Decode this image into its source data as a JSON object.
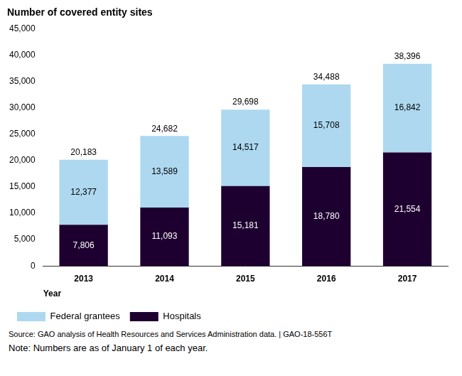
{
  "chart_data": {
    "type": "bar",
    "title": "Number of covered entity sites",
    "x_label": "Year",
    "categories": [
      "2013",
      "2014",
      "2015",
      "2016",
      "2017"
    ],
    "series": [
      {
        "name": "Hospitals",
        "color": "#1e0030",
        "values": [
          7806,
          11093,
          15181,
          18780,
          21554
        ],
        "value_labels": [
          "7,806",
          "11,093",
          "15,181",
          "18,780",
          "21,554"
        ]
      },
      {
        "name": "Federal grantees",
        "color": "#add8f0",
        "values": [
          12377,
          13589,
          14517,
          15708,
          16842
        ],
        "value_labels": [
          "12,377",
          "13,589",
          "14,517",
          "15,708",
          "16,842"
        ]
      }
    ],
    "totals": {
      "values": [
        20183,
        24682,
        29698,
        34488,
        38396
      ],
      "value_labels": [
        "20,183",
        "24,682",
        "29,698",
        "34,488",
        "38,396"
      ]
    },
    "stacked": true,
    "data_labels": true,
    "grid": false,
    "legend": "bottom",
    "ylim": [
      0,
      45000
    ],
    "yticks": [
      0,
      {
        "value": 5000,
        "label": "5,000"
      },
      {
        "value": 10000,
        "label": "10,000"
      },
      {
        "value": 15000,
        "label": "15,000"
      },
      {
        "value": 20000,
        "label": "20,000"
      },
      {
        "value": 25000,
        "label": "25,000"
      },
      {
        "value": 30000,
        "label": "30,000"
      },
      {
        "value": 35000,
        "label": "35,000"
      },
      {
        "value": 40000,
        "label": "40,000"
      },
      {
        "value": 45000,
        "label": "45,000"
      }
    ],
    "annotations": [
      "Source: GAO analysis of Health Resources and Services Administration data.  |  GAO-18-556T",
      "Note: Numbers are as of January 1 of each year."
    ]
  }
}
